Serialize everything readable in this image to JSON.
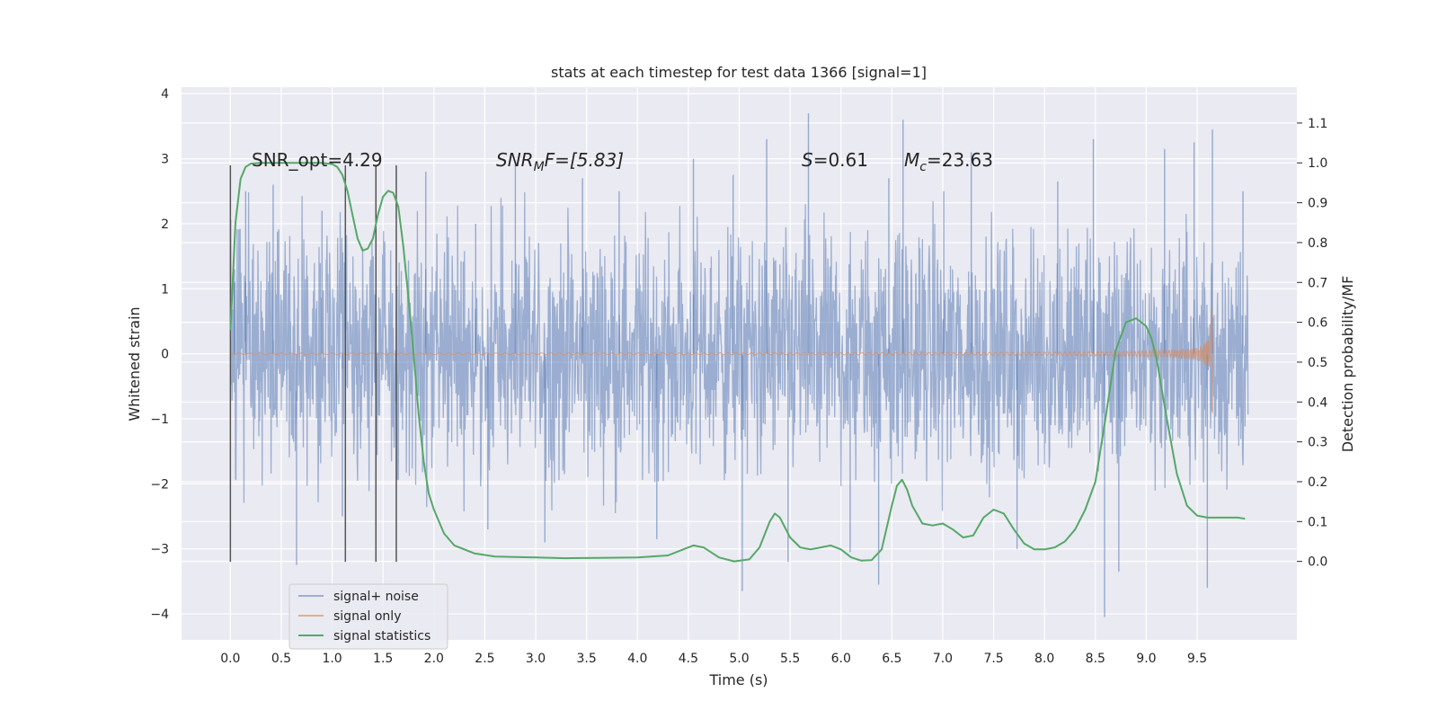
{
  "chart_data": {
    "type": "line",
    "title": "stats at each timestep for test data 1366 [signal=1]",
    "xlabel": "Time (s)",
    "ylabel": "Whitened strain",
    "y2label": "Detection probability/MF",
    "xlim": [
      -0.48,
      10.48
    ],
    "ylim": [
      -4.4,
      4.1
    ],
    "y2lim": [
      -0.197,
      1.19
    ],
    "xticks": [
      "0.0",
      "0.5",
      "1.0",
      "1.5",
      "2.0",
      "2.5",
      "3.0",
      "3.5",
      "4.0",
      "4.5",
      "5.0",
      "5.5",
      "6.0",
      "6.5",
      "7.0",
      "7.5",
      "8.0",
      "8.5",
      "9.0",
      "9.5"
    ],
    "yticks": [
      "4",
      "3",
      "2",
      "1",
      "0",
      "−1",
      "−2",
      "−3",
      "−4"
    ],
    "y2ticks": [
      "1.1",
      "1.0",
      "0.9",
      "0.8",
      "0.7",
      "0.6",
      "0.5",
      "0.4",
      "0.3",
      "0.2",
      "0.1",
      "0.0"
    ],
    "grid": true,
    "legend_position": "lower-left",
    "annotations": {
      "snr_opt": "SNR_opt=4.29",
      "snr_mf_base": "SNR",
      "snr_mf_sub": "M",
      "snr_mf_rest": "F=[5.83]",
      "s_base": "S",
      "s_rest": "=0.61",
      "mc_base": "M",
      "mc_sub": "c",
      "mc_rest": "=23.63"
    },
    "vertical_lines_x": [
      0.0,
      1.13,
      1.43,
      1.63
    ],
    "vertical_lines_y": [
      -3.2,
      2.9
    ],
    "series": [
      {
        "name": "signal+ noise",
        "color": "#4c72b0",
        "description_values": "noise band",
        "x_range": [
          0.0,
          10.0
        ],
        "core_amplitude": 1.2,
        "spikes": [
          [
            0.04,
            1.3
          ],
          [
            0.15,
            2.5
          ],
          [
            0.42,
            2.6
          ],
          [
            0.65,
            -3.25
          ],
          [
            0.9,
            2.2
          ],
          [
            1.1,
            -2.5
          ],
          [
            1.92,
            2.8
          ],
          [
            2.41,
            2.0
          ],
          [
            2.53,
            -2.7
          ],
          [
            2.8,
            2.9
          ],
          [
            3.09,
            -2.9
          ],
          [
            3.46,
            2.7
          ],
          [
            3.82,
            2.5
          ],
          [
            4.19,
            -2.85
          ],
          [
            4.55,
            3.0
          ],
          [
            4.94,
            2.75
          ],
          [
            5.03,
            -3.65
          ],
          [
            5.27,
            3.3
          ],
          [
            5.48,
            -3.2
          ],
          [
            5.68,
            3.7
          ],
          [
            6.09,
            -3.05
          ],
          [
            6.37,
            -3.55
          ],
          [
            6.47,
            2.7
          ],
          [
            6.61,
            3.6
          ],
          [
            7.01,
            2.5
          ],
          [
            7.28,
            3.1
          ],
          [
            7.73,
            -3.0
          ],
          [
            8.13,
            2.65
          ],
          [
            8.48,
            3.3
          ],
          [
            8.59,
            -4.05
          ],
          [
            8.73,
            -3.35
          ],
          [
            9.18,
            3.15
          ],
          [
            9.47,
            3.25
          ],
          [
            9.6,
            -3.6
          ],
          [
            9.65,
            3.45
          ],
          [
            9.95,
            2.5
          ]
        ]
      },
      {
        "name": "signal only",
        "color": "#dd8452",
        "x_range": [
          0.0,
          9.65
        ],
        "peak_amplitude": 0.95,
        "end_time": 9.65
      },
      {
        "name": "signal statistics",
        "color": "#55a868",
        "axis": "right",
        "x": [
          0.0,
          0.05,
          0.1,
          0.15,
          0.2,
          0.3,
          0.5,
          0.7,
          0.9,
          1.0,
          1.05,
          1.1,
          1.15,
          1.2,
          1.25,
          1.3,
          1.35,
          1.4,
          1.45,
          1.5,
          1.55,
          1.6,
          1.65,
          1.7,
          1.75,
          1.8,
          1.85,
          1.9,
          1.95,
          2.0,
          2.1,
          2.2,
          2.4,
          2.6,
          3.0,
          3.3,
          3.6,
          4.0,
          4.3,
          4.45,
          4.55,
          4.65,
          4.8,
          4.95,
          5.1,
          5.2,
          5.3,
          5.35,
          5.4,
          5.5,
          5.6,
          5.7,
          5.8,
          5.9,
          6.0,
          6.1,
          6.2,
          6.3,
          6.4,
          6.5,
          6.55,
          6.6,
          6.65,
          6.7,
          6.8,
          6.9,
          7.0,
          7.1,
          7.2,
          7.3,
          7.4,
          7.5,
          7.6,
          7.7,
          7.8,
          7.9,
          8.0,
          8.1,
          8.2,
          8.3,
          8.4,
          8.5,
          8.6,
          8.7,
          8.8,
          8.9,
          9.0,
          9.05,
          9.1,
          9.2,
          9.3,
          9.4,
          9.5,
          9.6,
          9.7,
          9.8,
          9.9,
          9.97
        ],
        "y": [
          0.58,
          0.85,
          0.96,
          0.99,
          0.998,
          1.0,
          1.0,
          1.0,
          1.0,
          0.997,
          0.99,
          0.97,
          0.93,
          0.87,
          0.81,
          0.78,
          0.785,
          0.81,
          0.87,
          0.915,
          0.93,
          0.925,
          0.89,
          0.79,
          0.66,
          0.52,
          0.37,
          0.25,
          0.17,
          0.13,
          0.07,
          0.04,
          0.02,
          0.012,
          0.01,
          0.008,
          0.009,
          0.01,
          0.015,
          0.03,
          0.04,
          0.035,
          0.01,
          0.0,
          0.005,
          0.035,
          0.1,
          0.12,
          0.11,
          0.06,
          0.035,
          0.03,
          0.035,
          0.04,
          0.03,
          0.01,
          0.002,
          0.003,
          0.03,
          0.14,
          0.19,
          0.205,
          0.18,
          0.14,
          0.095,
          0.09,
          0.095,
          0.08,
          0.06,
          0.065,
          0.11,
          0.13,
          0.12,
          0.08,
          0.045,
          0.03,
          0.03,
          0.035,
          0.05,
          0.08,
          0.13,
          0.2,
          0.36,
          0.53,
          0.6,
          0.61,
          0.59,
          0.56,
          0.51,
          0.36,
          0.22,
          0.14,
          0.115,
          0.11,
          0.11,
          0.11,
          0.11,
          0.107
        ]
      }
    ]
  }
}
